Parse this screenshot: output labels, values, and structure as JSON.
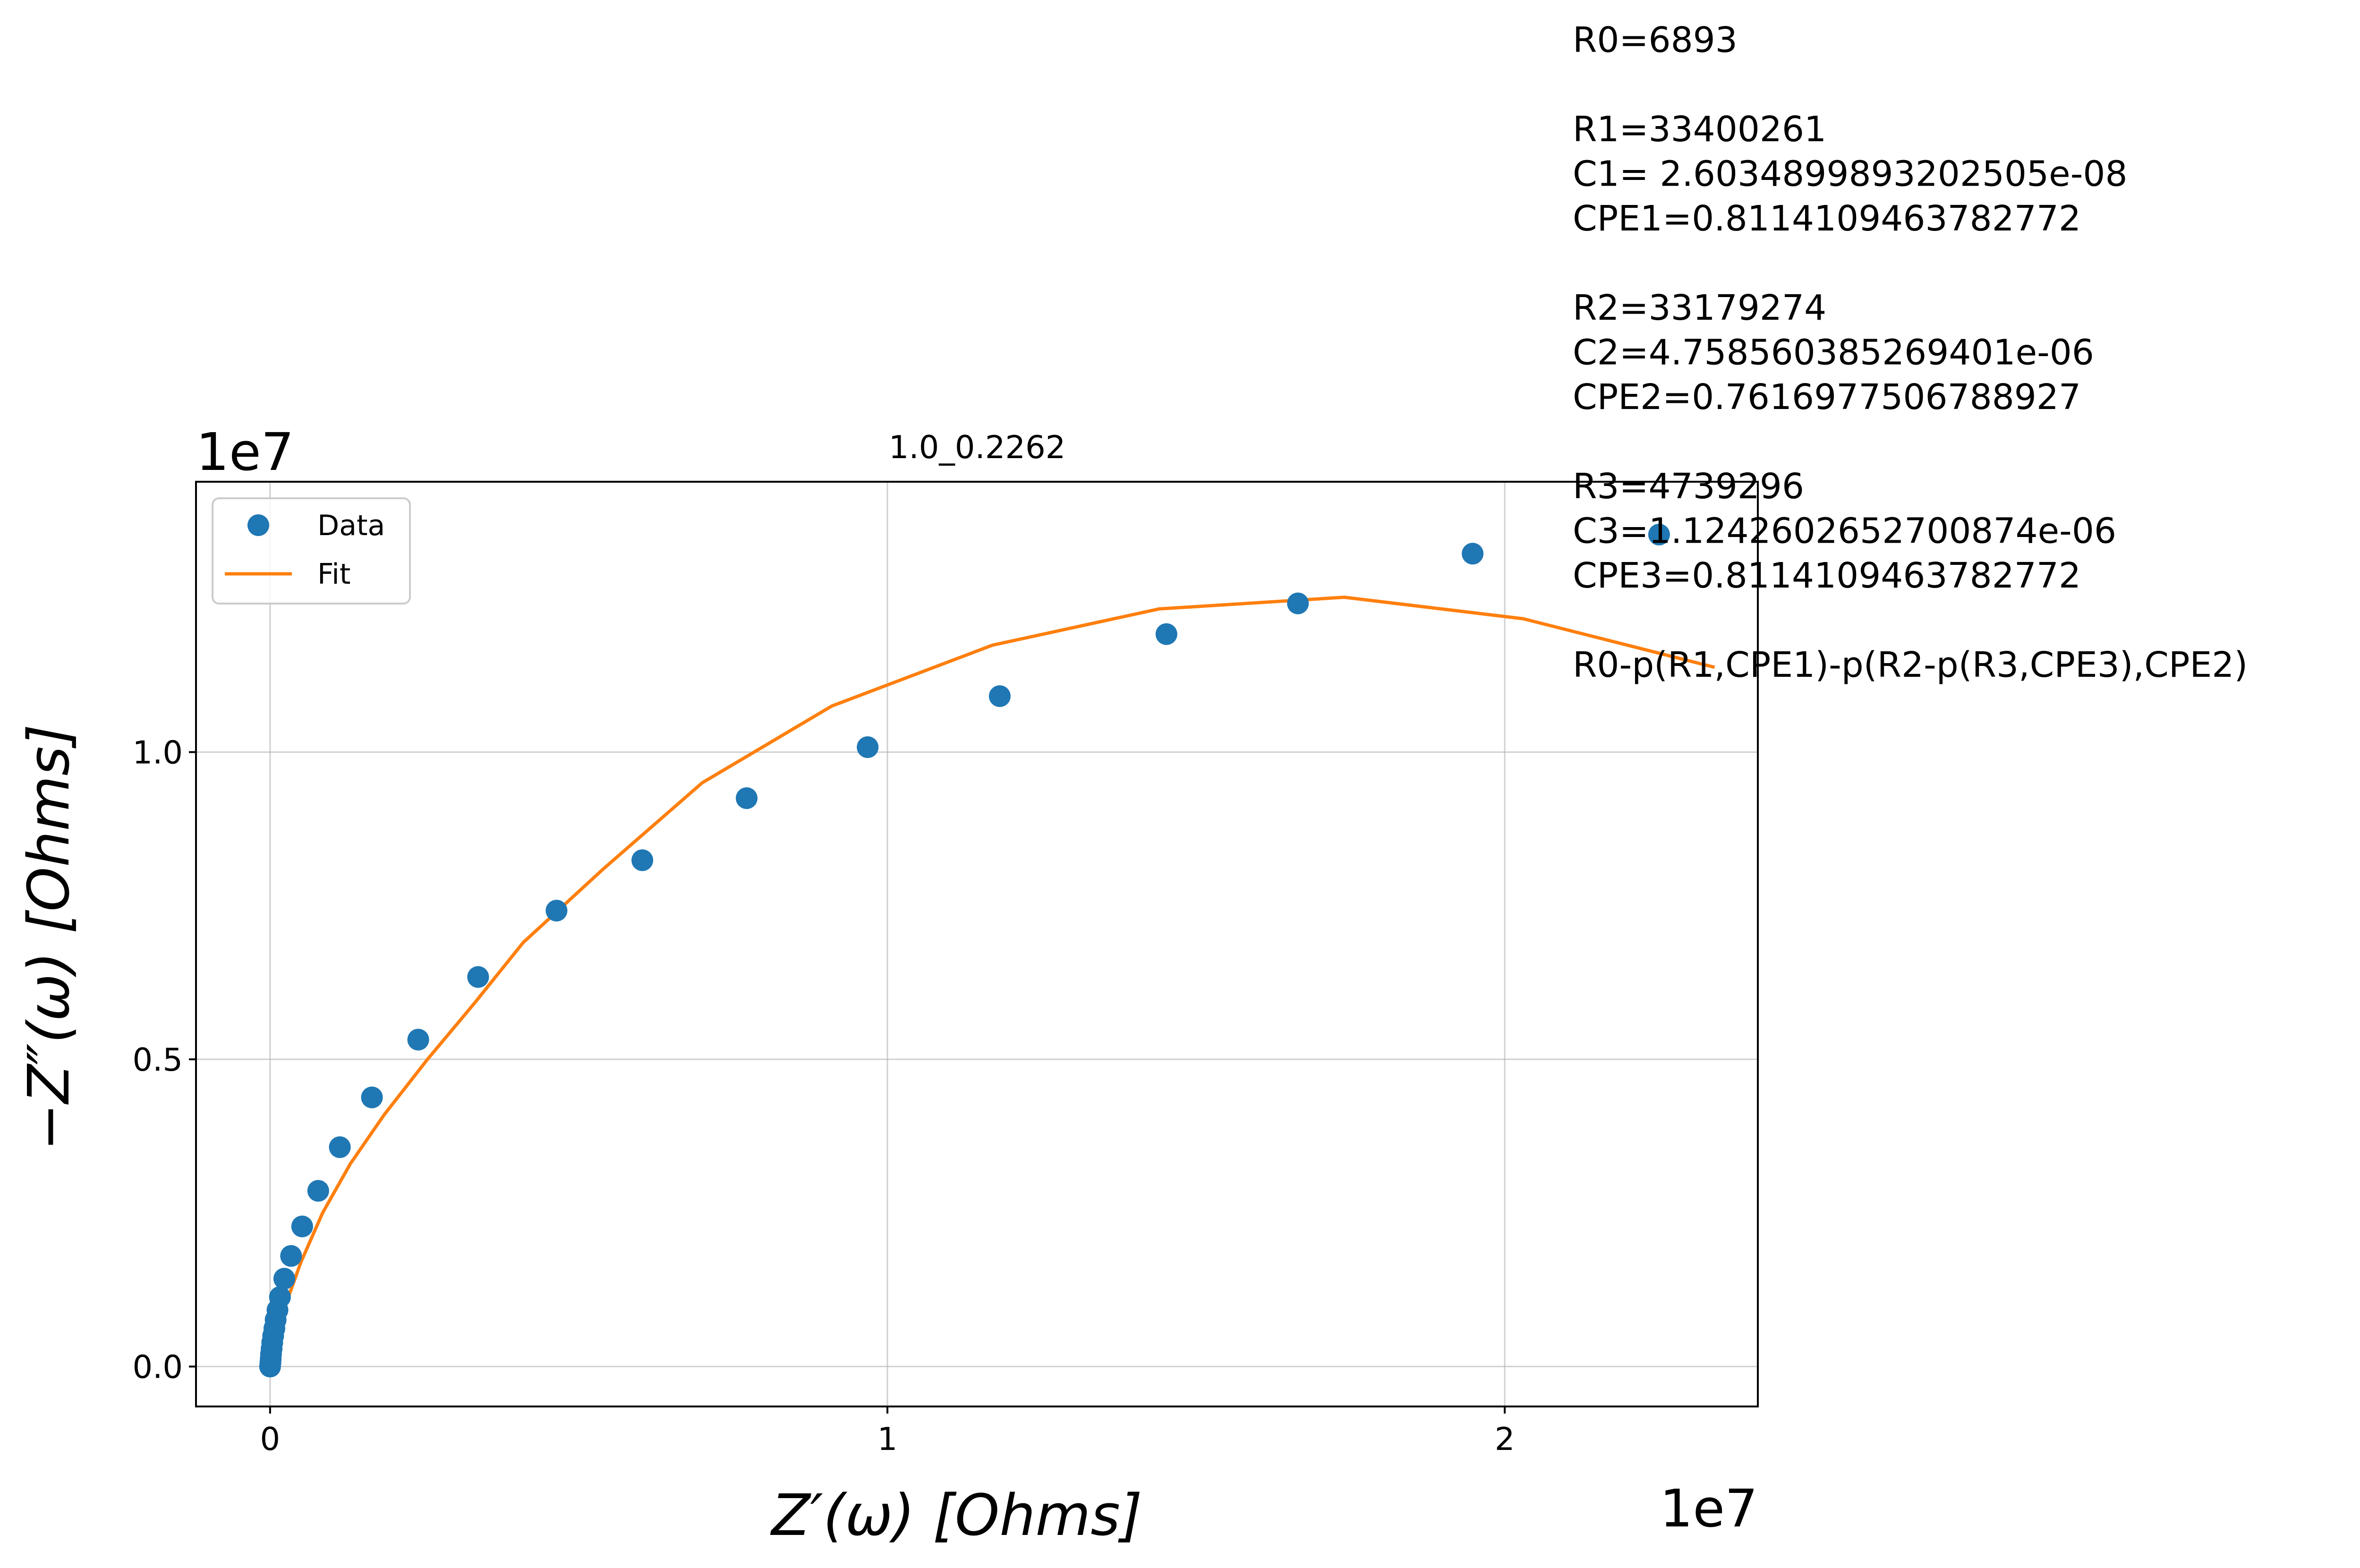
{
  "chart_data": {
    "type": "scatter",
    "title": "1.0_0.2262",
    "xlabel": "Z′(ω) [Ohms]",
    "ylabel": "−Z″(ω) [Ohms]",
    "x_offset_label": "1e7",
    "y_offset_label": "1e7",
    "xlim": [
      -1200000,
      24100000
    ],
    "ylim": [
      -650000,
      14400000
    ],
    "xticks": [
      0,
      10000000,
      20000000
    ],
    "xtick_labels": [
      "0",
      "1",
      "2"
    ],
    "yticks": [
      0,
      5000000,
      10000000
    ],
    "ytick_labels": [
      "0.0",
      "0.5",
      "1.0"
    ],
    "grid": true,
    "legend_position": "top-left",
    "series": [
      {
        "name": "Data",
        "kind": "scatter",
        "color": "#1f77b4",
        "x": [
          0,
          5000,
          10000,
          15000,
          25000,
          35000,
          50000,
          70000,
          90000,
          120000,
          160000,
          230000,
          340000,
          520000,
          780000,
          1130000,
          1650000,
          2400000,
          3370000,
          4640000,
          6030000,
          7720000,
          9680000,
          11820000,
          14520000,
          16650000,
          19480000,
          22500000
        ],
        "y": [
          0,
          60000,
          120000,
          200000,
          290000,
          390000,
          500000,
          620000,
          760000,
          920000,
          1130000,
          1430000,
          1800000,
          2280000,
          2860000,
          3570000,
          4380000,
          5320000,
          6340000,
          7420000,
          8240000,
          9250000,
          10080000,
          10910000,
          11920000,
          12420000,
          13230000,
          13540000
        ]
      },
      {
        "name": "Fit",
        "kind": "line",
        "color": "#ff7f0e",
        "x": [
          0,
          100000,
          250000,
          500000,
          850000,
          1300000,
          1850000,
          2550000,
          3300000,
          4100000,
          5400000,
          7000000,
          9100000,
          11700000,
          14400000,
          17400000,
          20300000,
          23400000
        ],
        "y": [
          0,
          500000,
          1000000,
          1700000,
          2500000,
          3300000,
          4100000,
          5000000,
          5900000,
          6900000,
          8100000,
          9500000,
          10750000,
          11740000,
          12330000,
          12520000,
          12170000,
          11380000
        ]
      }
    ],
    "annotations": [
      "R0=6893",
      "",
      "R1=33400261",
      "C1= 2.6034899893202505e-08",
      "CPE1=0.8114109463782772",
      "",
      "R2=33179274",
      "C2=4.758560385269401e-06",
      "CPE2=0.7616977506788927",
      "",
      "R3=4739296",
      "C3=1.1242602652700874e-06",
      "CPE3=0.8114109463782772",
      "",
      " R0-p(R1,CPE1)-p(R2-p(R3,CPE3),CPE2)"
    ]
  }
}
